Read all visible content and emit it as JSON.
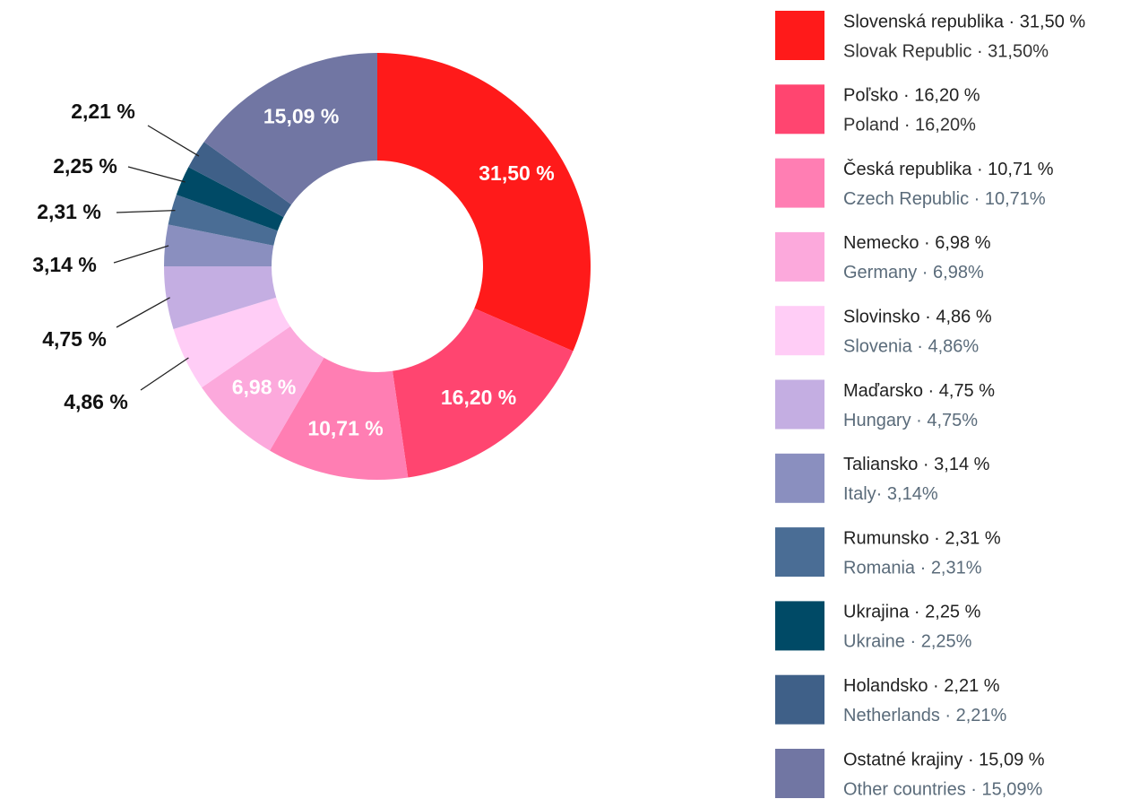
{
  "chart_data": {
    "type": "pie",
    "donut": true,
    "values": [
      31.5,
      16.2,
      10.71,
      6.98,
      4.86,
      4.75,
      3.14,
      2.31,
      2.25,
      2.21,
      15.09
    ],
    "value_labels": [
      "31,50 %",
      "16,20 %",
      "10,71 %",
      "6,98 %",
      "4,86 %",
      "4,75 %",
      "3,14 %",
      "2,31 %",
      "2,25 %",
      "2,21 %",
      "15,09 %"
    ],
    "colors": [
      "#ff1a1a",
      "#ff4570",
      "#ff7eb3",
      "#fca9dc",
      "#ffcdf6",
      "#c4aee2",
      "#8a8fbf",
      "#4a6d95",
      "#004a66",
      "#3f6088",
      "#7176a3"
    ],
    "categories": [
      "Slovenská republika · 31,50 %",
      "Poľsko · 16,20 %",
      "Česká republika · 10,71 %",
      "Nemecko · 6,98 %",
      "Slovinsko · 4,86 %",
      "Maďarsko · 4,75 %",
      "Taliansko · 3,14 %",
      "Rumunsko · 2,31 %",
      "Ukrajina · 2,25 %",
      "Holandsko · 2,21 %",
      "Ostatné krajiny · 15,09 %"
    ],
    "categories_en": [
      "Slovak Republic · 31,50%",
      "Poland · 16,20%",
      "Czech Republic · 10,71%",
      "Germany · 6,98%",
      "Slovenia · 4,86%",
      "Hungary · 4,75%",
      "Italy· 3,14%",
      "Romania · 2,31%",
      "Ukraine · 2,25%",
      "Netherlands · 2,21%",
      "Other countries · 15,09%"
    ]
  }
}
